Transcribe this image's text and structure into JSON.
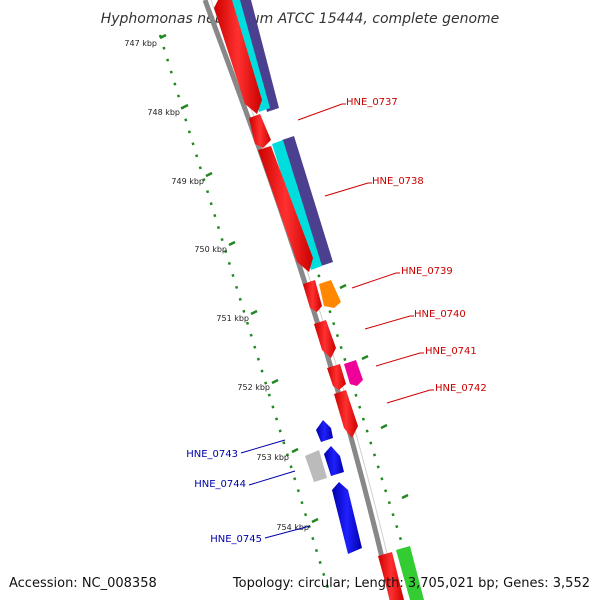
{
  "title": "Hyphomonas neptunium ATCC 15444, complete genome",
  "footer": {
    "accession": "Accession: NC_008358",
    "summary": "Topology: circular; Length: 3,705,021 bp; Genes: 3,552"
  },
  "ticks": [
    "747 kbp",
    "748 kbp",
    "749 kbp",
    "750 kbp",
    "751 kbp",
    "752 kbp",
    "753 kbp",
    "754 kbp"
  ],
  "genes_right": [
    {
      "label": "HNE_0737",
      "color": "#cc0000"
    },
    {
      "label": "HNE_0738",
      "color": "#cc0000"
    },
    {
      "label": "HNE_0739",
      "color": "#cc0000"
    },
    {
      "label": "HNE_0740",
      "color": "#cc0000"
    },
    {
      "label": "HNE_0741",
      "color": "#cc0000"
    },
    {
      "label": "HNE_0742",
      "color": "#cc0000"
    }
  ],
  "genes_left": [
    {
      "label": "HNE_0743",
      "color": "#0000aa"
    },
    {
      "label": "HNE_0744",
      "color": "#0000aa"
    },
    {
      "label": "HNE_0745",
      "color": "#0000aa"
    }
  ],
  "colors": {
    "backbone": "#888888",
    "gene_red": "#ff0000",
    "gene_blue": "#0000ee",
    "gene_gray": "#bbbbbb",
    "cyan": "#00dddd",
    "purple": "#4b3f8f",
    "orange": "#ff8800",
    "magenta": "#ee0099",
    "green": "#33cc33",
    "tick_green": "#228822"
  }
}
